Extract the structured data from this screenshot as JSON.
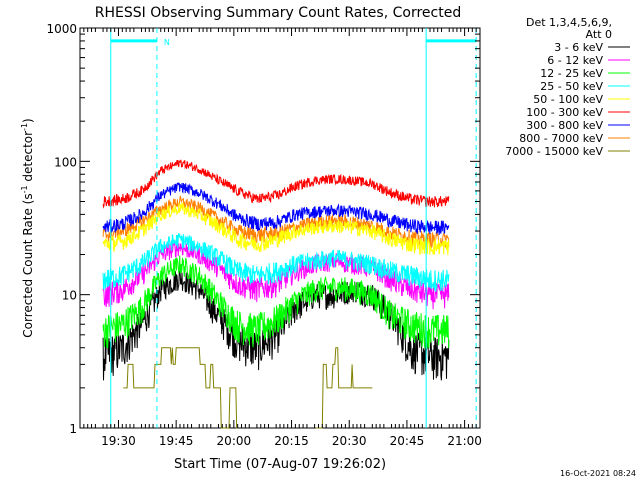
{
  "chart_data": {
    "type": "line",
    "title": "RHESSI Observing Summary Count Rates, Corrected",
    "xlabel": "Start Time (07-Aug-07 19:26:02)",
    "ylabel_main": "Corrected Count Rate (s",
    "ylabel_sup1": "-1",
    "ylabel_mid": " detector",
    "ylabel_sup2": "-1",
    "ylabel_end": ")",
    "yscale": "log",
    "ylim": [
      1,
      1000
    ],
    "xlim_minutes": [
      -6,
      98
    ],
    "x_ticks": [
      {
        "label": "19:30",
        "minutes": 4
      },
      {
        "label": "19:45",
        "minutes": 19
      },
      {
        "label": "20:00",
        "minutes": 34
      },
      {
        "label": "20:15",
        "minutes": 49
      },
      {
        "label": "20:30",
        "minutes": 64
      },
      {
        "label": "20:45",
        "minutes": 79
      },
      {
        "label": "21:00",
        "minutes": 94
      }
    ],
    "y_ticks": [
      {
        "label": "1",
        "value": 1
      },
      {
        "label": "10",
        "value": 10
      },
      {
        "label": "100",
        "value": 100
      },
      {
        "label": "1000",
        "value": 1000
      }
    ],
    "x_minutes": [
      0,
      5,
      10,
      15,
      20,
      25,
      30,
      35,
      40,
      45,
      50,
      55,
      60,
      65,
      70,
      75,
      80,
      85,
      90
    ],
    "series": [
      {
        "name": "3 - 6 keV",
        "color": "#000000",
        "values": [
          3.5,
          4,
          6,
          11,
          13.5,
          11,
          7,
          4.5,
          4,
          5,
          8,
          10,
          10,
          11,
          10,
          7,
          4,
          3.5,
          3.5
        ]
      },
      {
        "name": "6 - 12 keV",
        "color": "#ff00ff",
        "values": [
          10,
          11,
          14,
          20,
          23,
          20,
          16,
          12,
          11,
          12,
          15,
          17,
          18,
          17,
          16,
          13,
          11,
          10,
          10
        ]
      },
      {
        "name": "12 - 25 keV",
        "color": "#00ff00",
        "values": [
          5.5,
          6,
          8,
          14,
          17,
          14,
          9,
          6,
          5.5,
          6.5,
          9,
          11,
          11.5,
          11,
          10,
          7,
          6,
          5.5,
          5.5
        ]
      },
      {
        "name": "25 - 50 keV",
        "color": "#00ffff",
        "values": [
          13,
          14,
          17,
          23,
          26,
          23,
          19,
          15,
          14,
          15,
          17,
          18,
          19,
          18,
          17,
          15,
          14,
          13,
          13
        ]
      },
      {
        "name": "50 - 100 keV",
        "color": "#ffff00",
        "values": [
          24,
          25,
          30,
          40,
          45,
          40,
          33,
          26,
          24,
          26,
          30,
          32,
          33,
          32,
          30,
          26,
          24,
          23,
          23
        ]
      },
      {
        "name": "100 - 300 keV",
        "color": "#ff0000",
        "values": [
          50,
          52,
          60,
          85,
          98,
          88,
          72,
          60,
          52,
          55,
          65,
          72,
          74,
          72,
          68,
          58,
          52,
          50,
          50
        ]
      },
      {
        "name": "300 - 800 keV",
        "color": "#0000ff",
        "values": [
          32,
          34,
          40,
          56,
          65,
          58,
          48,
          38,
          34,
          35,
          40,
          42,
          43,
          42,
          40,
          36,
          33,
          32,
          32
        ]
      },
      {
        "name": "800 - 7000 keV",
        "color": "#ff8000",
        "values": [
          28,
          30,
          35,
          44,
          50,
          45,
          37,
          30,
          28,
          29,
          32,
          35,
          36,
          35,
          33,
          29,
          27,
          26,
          26
        ]
      },
      {
        "name": "7000 - 15000 keV",
        "color": "#808000",
        "values": [
          null,
          1.8,
          2.5,
          3.5,
          3.8,
          3.2,
          2,
          1.3,
          null,
          null,
          null,
          2.5,
          3,
          2.5,
          2,
          null,
          null,
          null,
          null
        ]
      }
    ],
    "attenuator_line_value": 800,
    "marker_label": "N",
    "vertical_lines_minutes": [
      2,
      14,
      84,
      97
    ]
  },
  "legend": {
    "header_line1": "Det 1,3,4,5,6,9,",
    "header_line2": "Att 0",
    "entries": [
      {
        "label": "3 - 6 keV",
        "color": "#000000"
      },
      {
        "label": "6 - 12 keV",
        "color": "#ff00ff"
      },
      {
        "label": "12 - 25 keV",
        "color": "#00ff00"
      },
      {
        "label": "25 - 50 keV",
        "color": "#00ffff"
      },
      {
        "label": "50 - 100 keV",
        "color": "#ffff00"
      },
      {
        "label": "100 - 300 keV",
        "color": "#ff0000"
      },
      {
        "label": "300 - 800 keV",
        "color": "#0000ff"
      },
      {
        "label": "800 - 7000 keV",
        "color": "#ff8000"
      },
      {
        "label": "7000 - 15000 keV",
        "color": "#808000"
      }
    ]
  },
  "timestamp": "16-Oct-2021 08:24",
  "colors": {
    "axes": "#000000",
    "marker": "#00ffff",
    "background": "#ffffff"
  }
}
